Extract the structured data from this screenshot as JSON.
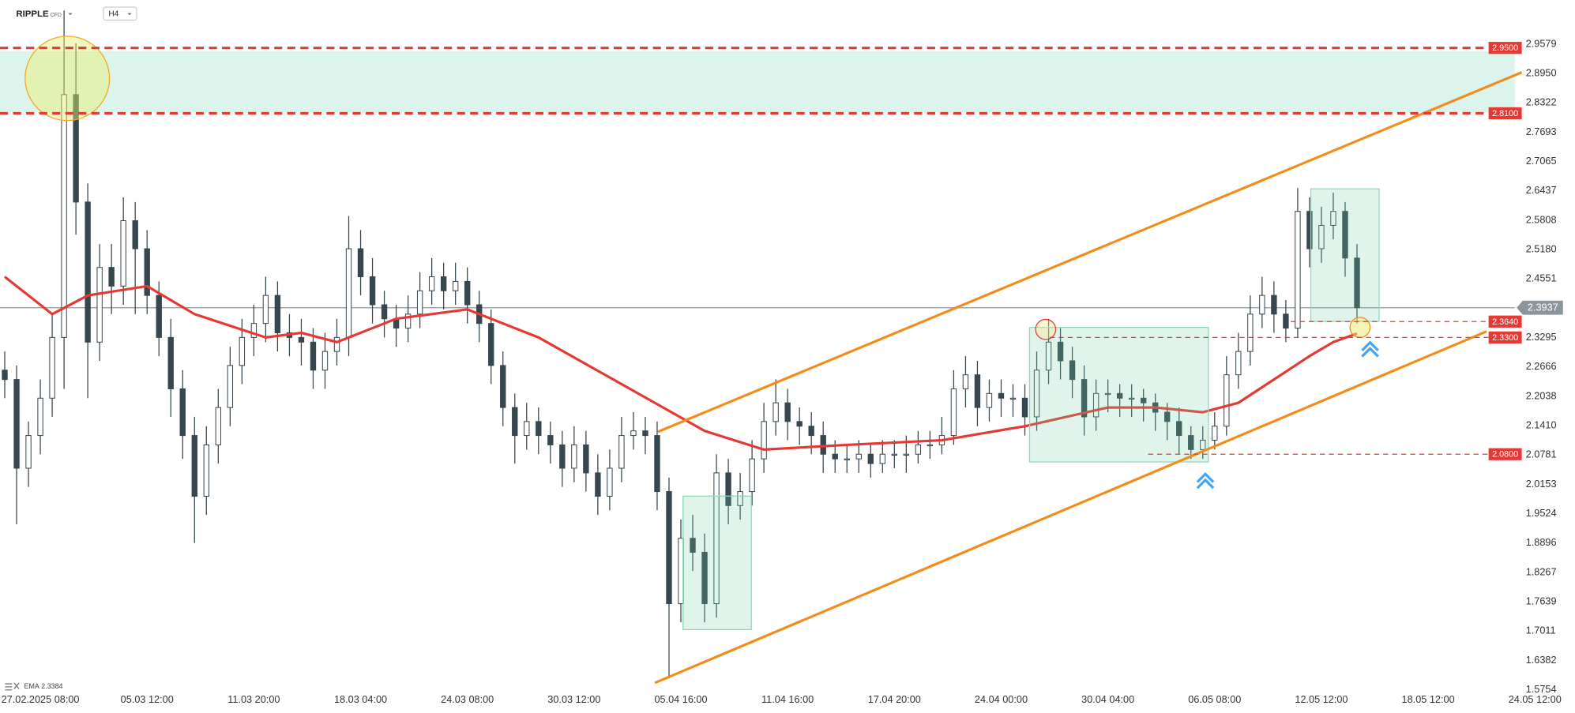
{
  "header": {
    "symbol": "RIPPLE",
    "instrument_type": "CFD",
    "timeframe": "H4"
  },
  "chart_data": {
    "type": "candlestick",
    "xlim": [
      -0.4,
      130.6
    ],
    "ylim": [
      1.5754,
      3.0525
    ],
    "xticks": [
      {
        "value": 3,
        "label": "27.02.2025 08:00"
      },
      {
        "value": 12,
        "label": "05.03 12:00"
      },
      {
        "value": 21,
        "label": "11.03 20:00"
      },
      {
        "value": 30,
        "label": "18.03 04:00"
      },
      {
        "value": 39,
        "label": "24.03 08:00"
      },
      {
        "value": 48,
        "label": "30.03 12:00"
      },
      {
        "value": 57,
        "label": "05.04 16:00"
      },
      {
        "value": 66,
        "label": "11.04 16:00"
      },
      {
        "value": 75,
        "label": "17.04 20:00"
      },
      {
        "value": 84,
        "label": "24.04 00:00"
      },
      {
        "value": 93,
        "label": "30.04 04:00"
      },
      {
        "value": 102,
        "label": "06.05 08:00"
      },
      {
        "value": 111,
        "label": "12.05 12:00"
      },
      {
        "value": 120,
        "label": "18.05 12:00"
      },
      {
        "value": 129,
        "label": "24.05 12:00"
      }
    ],
    "yticks": [
      2.9579,
      {
        "value": 2.895,
        "label": "2.8950"
      },
      2.8322,
      2.7693,
      2.7065,
      2.6437,
      2.5808,
      {
        "value": 2.518,
        "label": "2.5180"
      },
      2.4551,
      2.3295,
      2.2666,
      2.2038,
      {
        "value": 2.141,
        "label": "2.1410"
      },
      2.0781,
      2.0153,
      1.9524,
      1.8896,
      1.8267,
      1.7639,
      1.7011,
      1.6382,
      1.5754
    ],
    "up_color": "#78909c",
    "down_color": "#37474f",
    "candles": [
      [
        2.26,
        2.3,
        2.2,
        2.24
      ],
      [
        2.24,
        2.27,
        1.93,
        2.05
      ],
      [
        2.05,
        2.15,
        2.01,
        2.12
      ],
      [
        2.12,
        2.24,
        2.08,
        2.2
      ],
      [
        2.2,
        2.38,
        2.16,
        2.33
      ],
      [
        2.33,
        3.03,
        2.22,
        2.85
      ],
      [
        2.85,
        2.96,
        2.55,
        2.62
      ],
      [
        2.62,
        2.66,
        2.2,
        2.32
      ],
      [
        2.32,
        2.53,
        2.28,
        2.48
      ],
      [
        2.48,
        2.53,
        2.38,
        2.44
      ],
      [
        2.44,
        2.63,
        2.4,
        2.58
      ],
      [
        2.58,
        2.62,
        2.38,
        2.52
      ],
      [
        2.52,
        2.56,
        2.38,
        2.42
      ],
      [
        2.42,
        2.45,
        2.29,
        2.33
      ],
      [
        2.33,
        2.37,
        2.16,
        2.22
      ],
      [
        2.22,
        2.26,
        2.07,
        2.12
      ],
      [
        2.12,
        2.16,
        1.89,
        1.99
      ],
      [
        1.99,
        2.14,
        1.95,
        2.1
      ],
      [
        2.1,
        2.22,
        2.06,
        2.18
      ],
      [
        2.18,
        2.31,
        2.14,
        2.27
      ],
      [
        2.27,
        2.37,
        2.23,
        2.33
      ],
      [
        2.33,
        2.4,
        2.29,
        2.36
      ],
      [
        2.36,
        2.46,
        2.32,
        2.42
      ],
      [
        2.42,
        2.45,
        2.3,
        2.34
      ],
      [
        2.34,
        2.38,
        2.29,
        2.33
      ],
      [
        2.33,
        2.37,
        2.27,
        2.32
      ],
      [
        2.32,
        2.35,
        2.22,
        2.26
      ],
      [
        2.26,
        2.34,
        2.22,
        2.3
      ],
      [
        2.3,
        2.37,
        2.27,
        2.33
      ],
      [
        2.33,
        2.59,
        2.29,
        2.52
      ],
      [
        2.52,
        2.56,
        2.42,
        2.46
      ],
      [
        2.46,
        2.5,
        2.36,
        2.4
      ],
      [
        2.4,
        2.43,
        2.33,
        2.37
      ],
      [
        2.37,
        2.4,
        2.31,
        2.35
      ],
      [
        2.35,
        2.42,
        2.32,
        2.38
      ],
      [
        2.38,
        2.47,
        2.35,
        2.43
      ],
      [
        2.43,
        2.5,
        2.4,
        2.46
      ],
      [
        2.46,
        2.49,
        2.39,
        2.43
      ],
      [
        2.43,
        2.49,
        2.4,
        2.45
      ],
      [
        2.45,
        2.48,
        2.36,
        2.4
      ],
      [
        2.4,
        2.43,
        2.32,
        2.36
      ],
      [
        2.36,
        2.39,
        2.23,
        2.27
      ],
      [
        2.27,
        2.3,
        2.14,
        2.18
      ],
      [
        2.18,
        2.21,
        2.06,
        2.12
      ],
      [
        2.12,
        2.19,
        2.09,
        2.15
      ],
      [
        2.15,
        2.18,
        2.08,
        2.12
      ],
      [
        2.12,
        2.15,
        2.06,
        2.1
      ],
      [
        2.1,
        2.13,
        2.01,
        2.05
      ],
      [
        2.05,
        2.14,
        2.02,
        2.1
      ],
      [
        2.1,
        2.13,
        2.0,
        2.04
      ],
      [
        2.04,
        2.08,
        1.95,
        1.99
      ],
      [
        1.99,
        2.09,
        1.96,
        2.05
      ],
      [
        2.05,
        2.16,
        2.02,
        2.12
      ],
      [
        2.12,
        2.17,
        2.09,
        2.13
      ],
      [
        2.13,
        2.16,
        2.08,
        2.12
      ],
      [
        2.12,
        2.15,
        1.96,
        2.0
      ],
      [
        2.0,
        2.03,
        1.6,
        1.76
      ],
      [
        1.76,
        1.94,
        1.72,
        1.9
      ],
      [
        1.9,
        1.95,
        1.83,
        1.87
      ],
      [
        1.87,
        1.91,
        1.72,
        1.76
      ],
      [
        1.76,
        2.08,
        1.73,
        2.04
      ],
      [
        2.04,
        2.07,
        1.93,
        1.97
      ],
      [
        1.97,
        2.04,
        1.94,
        2.0
      ],
      [
        2.0,
        2.11,
        1.97,
        2.07
      ],
      [
        2.07,
        2.19,
        2.04,
        2.15
      ],
      [
        2.15,
        2.24,
        2.12,
        2.19
      ],
      [
        2.19,
        2.22,
        2.11,
        2.15
      ],
      [
        2.15,
        2.18,
        2.1,
        2.14
      ],
      [
        2.14,
        2.17,
        2.08,
        2.12
      ],
      [
        2.12,
        2.15,
        2.04,
        2.08
      ],
      [
        2.08,
        2.11,
        2.04,
        2.07
      ],
      [
        2.07,
        2.1,
        2.04,
        2.07
      ],
      [
        2.07,
        2.11,
        2.04,
        2.08
      ],
      [
        2.08,
        2.1,
        2.03,
        2.06
      ],
      [
        2.06,
        2.11,
        2.04,
        2.08
      ],
      [
        2.08,
        2.11,
        2.05,
        2.08
      ],
      [
        2.08,
        2.12,
        2.04,
        2.08
      ],
      [
        2.08,
        2.13,
        2.06,
        2.1
      ],
      [
        2.1,
        2.13,
        2.07,
        2.1
      ],
      [
        2.1,
        2.16,
        2.08,
        2.12
      ],
      [
        2.12,
        2.26,
        2.1,
        2.22
      ],
      [
        2.22,
        2.29,
        2.18,
        2.25
      ],
      [
        2.25,
        2.28,
        2.14,
        2.18
      ],
      [
        2.18,
        2.24,
        2.15,
        2.21
      ],
      [
        2.21,
        2.24,
        2.16,
        2.2
      ],
      [
        2.2,
        2.23,
        2.16,
        2.2
      ],
      [
        2.2,
        2.23,
        2.12,
        2.16
      ],
      [
        2.16,
        2.3,
        2.13,
        2.26
      ],
      [
        2.26,
        2.37,
        2.23,
        2.32
      ],
      [
        2.32,
        2.35,
        2.24,
        2.28
      ],
      [
        2.28,
        2.31,
        2.2,
        2.24
      ],
      [
        2.24,
        2.27,
        2.12,
        2.16
      ],
      [
        2.16,
        2.24,
        2.13,
        2.21
      ],
      [
        2.21,
        2.24,
        2.17,
        2.21
      ],
      [
        2.21,
        2.23,
        2.16,
        2.2
      ],
      [
        2.2,
        2.23,
        2.16,
        2.2
      ],
      [
        2.2,
        2.22,
        2.15,
        2.19
      ],
      [
        2.19,
        2.21,
        2.13,
        2.17
      ],
      [
        2.17,
        2.19,
        2.11,
        2.15
      ],
      [
        2.15,
        2.18,
        2.08,
        2.12
      ],
      [
        2.12,
        2.14,
        2.07,
        2.09
      ],
      [
        2.09,
        2.14,
        2.07,
        2.11
      ],
      [
        2.11,
        2.17,
        2.09,
        2.14
      ],
      [
        2.14,
        2.29,
        2.12,
        2.25
      ],
      [
        2.25,
        2.34,
        2.22,
        2.3
      ],
      [
        2.3,
        2.42,
        2.27,
        2.38
      ],
      [
        2.38,
        2.46,
        2.35,
        2.42
      ],
      [
        2.42,
        2.45,
        2.34,
        2.38
      ],
      [
        2.38,
        2.41,
        2.32,
        2.35
      ],
      [
        2.35,
        2.65,
        2.33,
        2.6
      ],
      [
        2.6,
        2.63,
        2.48,
        2.52
      ],
      [
        2.52,
        2.61,
        2.49,
        2.57
      ],
      [
        2.57,
        2.64,
        2.54,
        2.6
      ],
      [
        2.6,
        2.62,
        2.46,
        2.5
      ],
      [
        2.5,
        2.53,
        2.36,
        2.3937
      ]
    ],
    "ema": {
      "name": "EMA",
      "color": "#e53935",
      "last_value": 2.3384,
      "x": [
        0,
        2,
        4,
        7,
        12,
        16,
        22,
        25,
        28,
        33,
        39,
        45,
        52,
        59,
        64,
        71,
        79,
        86,
        93,
        97,
        101,
        104,
        107,
        110,
        112,
        114
      ],
      "values": [
        2.46,
        2.42,
        2.38,
        2.42,
        2.44,
        2.38,
        2.33,
        2.34,
        2.32,
        2.37,
        2.39,
        2.33,
        2.23,
        2.13,
        2.09,
        2.1,
        2.11,
        2.14,
        2.18,
        2.18,
        2.17,
        2.19,
        2.24,
        2.29,
        2.32,
        2.3384
      ]
    },
    "levels": [
      {
        "value": 2.95,
        "label": "2.9500",
        "color": "#e53935",
        "style": "major"
      },
      {
        "value": 2.81,
        "label": "2.8100",
        "color": "#e53935",
        "style": "major"
      },
      {
        "value": 2.364,
        "label": "2.3640",
        "color": "#e53935",
        "style": "minor"
      },
      {
        "value": 2.33,
        "label": "2.3300",
        "color": "#e53935",
        "style": "minor"
      },
      {
        "value": 2.08,
        "label": "2.0800",
        "color": "#e53935",
        "style": "minor"
      }
    ],
    "current_price": {
      "value": 2.3937,
      "color": "#8a959c"
    }
  }
}
